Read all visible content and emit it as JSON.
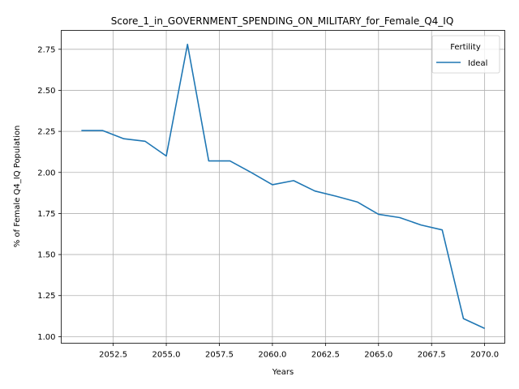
{
  "chart_data": {
    "type": "line",
    "title": "Score_1_in_GOVERNMENT_SPENDING_ON_MILITARY_for_Female_Q4_IQ",
    "xlabel": "Years",
    "ylabel": "% of Female Q4_IQ Population",
    "xlim": [
      2050.05,
      2070.95
    ],
    "ylim": [
      0.96,
      2.865
    ],
    "xticks": [
      2052.5,
      2055.0,
      2057.5,
      2060.0,
      2062.5,
      2065.0,
      2067.5,
      2070.0
    ],
    "xtick_labels": [
      "2052.5",
      "2055.0",
      "2057.5",
      "2060.0",
      "2062.5",
      "2065.0",
      "2067.5",
      "2070.0"
    ],
    "yticks": [
      1.0,
      1.25,
      1.5,
      1.75,
      2.0,
      2.25,
      2.5,
      2.75
    ],
    "ytick_labels": [
      "1.00",
      "1.25",
      "1.50",
      "1.75",
      "2.00",
      "2.25",
      "2.50",
      "2.75"
    ],
    "grid": true,
    "legend": {
      "title": "Fertility",
      "position": "top-right"
    },
    "series": [
      {
        "name": "Ideal",
        "color": "#1f77b4",
        "x": [
          2051,
          2052,
          2053,
          2054,
          2055,
          2056,
          2057,
          2058,
          2059,
          2060,
          2061,
          2062,
          2063,
          2064,
          2065,
          2066,
          2067,
          2068,
          2069,
          2070
        ],
        "y": [
          2.255,
          2.255,
          2.205,
          2.19,
          2.1,
          2.78,
          2.07,
          2.07,
          2.0,
          1.925,
          1.95,
          1.887,
          1.855,
          1.82,
          1.745,
          1.725,
          1.68,
          1.65,
          1.11,
          1.05
        ]
      }
    ]
  }
}
